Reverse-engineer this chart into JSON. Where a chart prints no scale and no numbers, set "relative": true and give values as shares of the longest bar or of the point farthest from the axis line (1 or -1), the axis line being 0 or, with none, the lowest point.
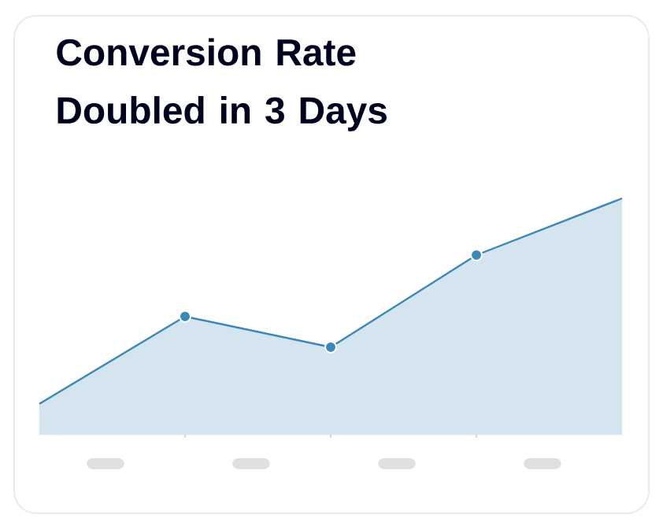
{
  "chart_data": {
    "type": "area",
    "title": "Conversion Rate Doubled in 3 Days",
    "categories": [
      null,
      null,
      null,
      null,
      null
    ],
    "relative": true,
    "series": [
      {
        "color": "#3a87b8",
        "values": [
          0.13,
          0.5,
          0.37,
          0.76,
          1
        ]
      }
    ],
    "marker": "circle",
    "grid": false
  }
}
